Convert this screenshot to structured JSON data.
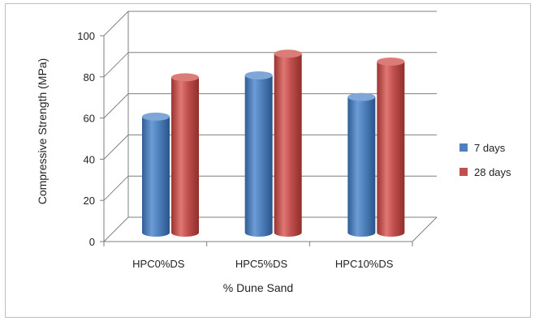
{
  "chart_data": {
    "type": "bar",
    "style": "3d-cylinder",
    "categories": [
      "HPC0%DS",
      "HPC5%DS",
      "HPC10%DS"
    ],
    "series": [
      {
        "name": "7 days",
        "values": [
          59,
          80,
          69
        ],
        "color": "#4f81bd"
      },
      {
        "name": "28 days",
        "values": [
          79,
          91,
          87
        ],
        "color": "#c0504d"
      }
    ],
    "title": "",
    "xlabel": "% Dune Sand",
    "ylabel": "Compressive Strength (MPa)",
    "ylim": [
      0,
      100
    ],
    "yticks": [
      "0",
      "20",
      "40",
      "60",
      "80",
      "100"
    ],
    "grid": true,
    "legend": "right"
  }
}
